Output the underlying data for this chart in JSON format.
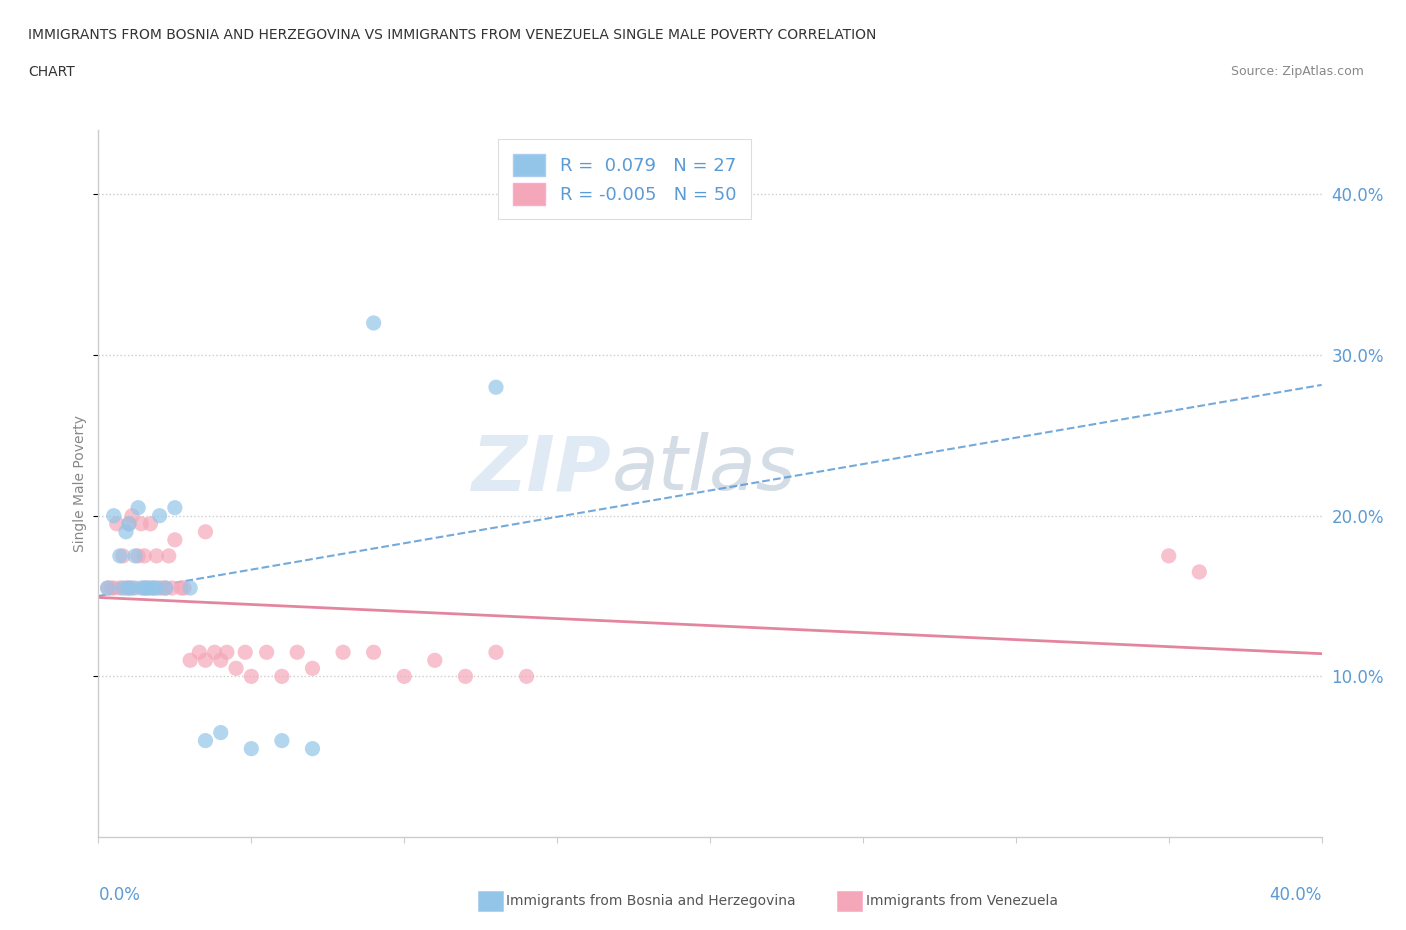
{
  "title_line1": "IMMIGRANTS FROM BOSNIA AND HERZEGOVINA VS IMMIGRANTS FROM VENEZUELA SINGLE MALE POVERTY CORRELATION",
  "title_line2": "CHART",
  "source": "Source: ZipAtlas.com",
  "ylabel": "Single Male Poverty",
  "xlim": [
    0.0,
    0.4
  ],
  "ylim": [
    0.0,
    0.44
  ],
  "bosnia_color": "#92c5e8",
  "venezuela_color": "#f4a7b9",
  "bosnia_line_color": "#5b9bd5",
  "venezuela_line_color": "#e07090",
  "bosnia_R": 0.079,
  "bosnia_N": 27,
  "venezuela_R": -0.005,
  "venezuela_N": 50,
  "bosnia_x": [
    0.003,
    0.005,
    0.007,
    0.008,
    0.009,
    0.01,
    0.01,
    0.011,
    0.012,
    0.013,
    0.014,
    0.015,
    0.016,
    0.017,
    0.018,
    0.019,
    0.02,
    0.022,
    0.025,
    0.03,
    0.035,
    0.04,
    0.05,
    0.06,
    0.07,
    0.09,
    0.13
  ],
  "bosnia_y": [
    0.155,
    0.2,
    0.175,
    0.155,
    0.19,
    0.155,
    0.195,
    0.155,
    0.175,
    0.205,
    0.155,
    0.155,
    0.155,
    0.155,
    0.155,
    0.155,
    0.2,
    0.155,
    0.205,
    0.155,
    0.06,
    0.065,
    0.055,
    0.06,
    0.055,
    0.32,
    0.28
  ],
  "venezuela_x": [
    0.003,
    0.004,
    0.005,
    0.006,
    0.007,
    0.008,
    0.009,
    0.01,
    0.01,
    0.011,
    0.012,
    0.013,
    0.014,
    0.015,
    0.015,
    0.016,
    0.017,
    0.018,
    0.019,
    0.02,
    0.021,
    0.022,
    0.023,
    0.024,
    0.025,
    0.027,
    0.028,
    0.03,
    0.033,
    0.035,
    0.035,
    0.038,
    0.04,
    0.042,
    0.045,
    0.048,
    0.05,
    0.055,
    0.06,
    0.065,
    0.07,
    0.08,
    0.09,
    0.1,
    0.11,
    0.12,
    0.13,
    0.14,
    0.35,
    0.36
  ],
  "venezuela_y": [
    0.155,
    0.155,
    0.155,
    0.195,
    0.155,
    0.175,
    0.155,
    0.155,
    0.195,
    0.2,
    0.155,
    0.175,
    0.195,
    0.155,
    0.175,
    0.155,
    0.195,
    0.155,
    0.175,
    0.155,
    0.155,
    0.155,
    0.175,
    0.155,
    0.185,
    0.155,
    0.155,
    0.11,
    0.115,
    0.11,
    0.19,
    0.115,
    0.11,
    0.115,
    0.105,
    0.115,
    0.1,
    0.115,
    0.1,
    0.115,
    0.105,
    0.115,
    0.115,
    0.1,
    0.11,
    0.1,
    0.115,
    0.1,
    0.175,
    0.165
  ],
  "background_color": "#ffffff",
  "watermark_zip": "ZIP",
  "watermark_atlas": "atlas",
  "yticks": [
    0.1,
    0.2,
    0.3,
    0.4
  ],
  "ytick_labels": [
    "10.0%",
    "20.0%",
    "30.0%",
    "40.0%"
  ],
  "xtick_positions": [
    0.0,
    0.05,
    0.1,
    0.15,
    0.2,
    0.25,
    0.3,
    0.35,
    0.4
  ]
}
